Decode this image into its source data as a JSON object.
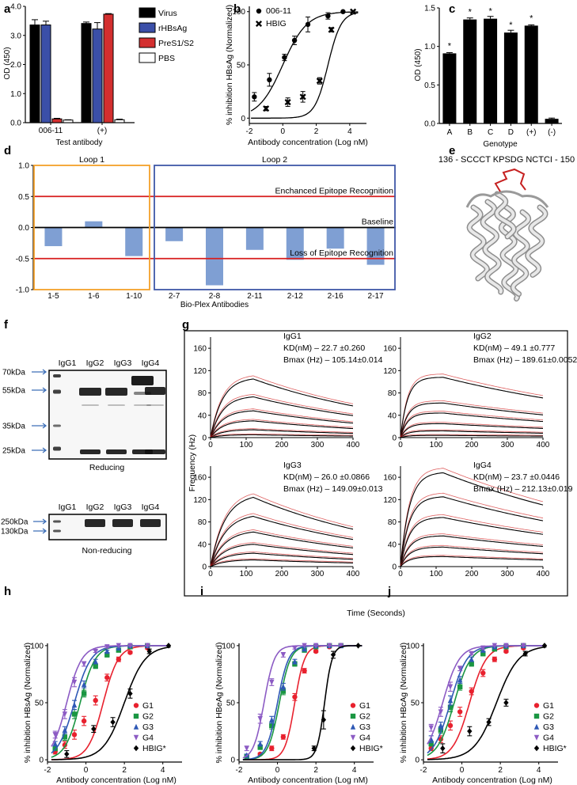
{
  "panel_letters": {
    "a": "a",
    "b": "b",
    "c": "c",
    "d": "d",
    "e": "e",
    "f": "f",
    "g": "g",
    "h": "h",
    "i": "i",
    "j": "j"
  },
  "colors": {
    "virus": "#000000",
    "rhbsag": "#3b4fa8",
    "pres": "#d32f2f",
    "pbs": "#ffffff",
    "d_bar": "#7f9fd3",
    "loop1_box": "#f4a12a",
    "loop2_box": "#3f58a8",
    "threshold": "#d81e1e",
    "gel_bg": "#f7f7f7",
    "sensor": "#d22020",
    "fit": "#000000",
    "g1": "#e8212e",
    "g2": "#1a9642",
    "g3": "#2e58b5",
    "g4": "#8c5bc4",
    "hbig": "#000000"
  },
  "chart_data": [
    {
      "id": "a",
      "type": "bar",
      "categories": [
        "006-11",
        "(+)"
      ],
      "series": [
        {
          "name": "Virus",
          "values": [
            3.36,
            3.41
          ]
        },
        {
          "name": "rHBsAg",
          "values": [
            3.36,
            3.22
          ]
        },
        {
          "name": "PreS1/S2",
          "values": [
            0.13,
            3.73
          ]
        },
        {
          "name": "PBS",
          "values": [
            0.09,
            0.1
          ]
        }
      ],
      "errors": [
        [
          0.18,
          0.05
        ],
        [
          0.13,
          0.22
        ],
        [
          0.02,
          0.02
        ],
        [
          0.01,
          0.02
        ]
      ],
      "ylabel": "OD (450)",
      "xlabel": "Test antibody",
      "ylim": [
        0,
        4
      ],
      "yticks": [
        "0.0",
        "1.0",
        "2.0",
        "3.0",
        "4.0"
      ]
    },
    {
      "id": "b",
      "type": "scatter",
      "ylabel": "% inhibition HBsAg (Normalized)",
      "xlabel": "Antibody concentration (Log nM)",
      "xlim": [
        -2,
        5
      ],
      "ylim": [
        -5,
        105
      ],
      "xticks": [
        "-2",
        "0",
        "2",
        "4"
      ],
      "yticks": [
        "0",
        "50",
        "100"
      ],
      "series": [
        {
          "name": "006-11",
          "marker": "circle",
          "x": [
            -1.7,
            -0.8,
            0.1,
            0.7,
            1.5,
            2.7,
            3.6
          ],
          "y": [
            20,
            36,
            57,
            73,
            88,
            96,
            100
          ],
          "err": [
            4,
            6,
            3,
            4,
            7,
            3,
            0
          ],
          "ec50": 0,
          "hill": 0.6
        },
        {
          "name": "HBIG",
          "marker": "x",
          "x": [
            -1,
            0.3,
            1.2,
            2.2,
            2.9,
            4.2
          ],
          "y": [
            9,
            15,
            20,
            35,
            83,
            100
          ],
          "err": [
            2,
            4,
            5,
            3,
            2,
            0
          ],
          "ec50": 2.7,
          "hill": 1.1
        }
      ]
    },
    {
      "id": "c",
      "type": "bar",
      "categories": [
        "A",
        "B",
        "C",
        "D",
        "(+)",
        "(-)"
      ],
      "values": [
        0.91,
        1.35,
        1.36,
        1.18,
        1.27,
        0.06
      ],
      "errors": [
        0.01,
        0.02,
        0.03,
        0.03,
        0.01,
        0.01
      ],
      "annotations": [
        "*",
        "*",
        "*",
        "*",
        "*",
        ""
      ],
      "ylabel": "OD (450)",
      "xlabel": "Genotype",
      "ylim": [
        0,
        1.5
      ],
      "yticks": [
        "0.0",
        "0.5",
        "1.0",
        "1.5"
      ]
    },
    {
      "id": "d",
      "type": "bar",
      "categories": [
        "1-5",
        "1-6",
        "1-10",
        "2-7",
        "2-8",
        "2-11",
        "2-12",
        "2-16",
        "2-17"
      ],
      "values": [
        -0.3,
        0.1,
        -0.46,
        -0.22,
        -0.93,
        -0.36,
        -0.52,
        -0.34,
        -0.6
      ],
      "xlabel": "Bio-Plex Antibodies",
      "ylim": [
        -1,
        1
      ],
      "yticks": [
        "1.0",
        "0.5",
        "0.0",
        "-0.5",
        "-1.0"
      ],
      "groups": [
        {
          "label": "Loop 1",
          "from": 0,
          "to": 2
        },
        {
          "label": "Loop 2",
          "from": 3,
          "to": 8
        }
      ],
      "thresholds": [
        {
          "y": 0.5,
          "label": "Enchanced Epitope Recognition"
        },
        {
          "y": 0,
          "label": "Baseline"
        },
        {
          "y": -0.5,
          "label": "Loss of Epitope Recognition"
        }
      ]
    },
    {
      "id": "g",
      "type": "line",
      "xlabel": "Time (Seconds)",
      "ylabel": "Frequency (Hz)",
      "xlim": [
        0,
        400
      ],
      "ylim": [
        0,
        180
      ],
      "xticks": [
        "0",
        "100",
        "200",
        "300",
        "400"
      ],
      "yticks": [
        "0",
        "40",
        "80",
        "120",
        "160"
      ],
      "subplots": [
        {
          "name": "IgG1",
          "kd": "KD(nM) – 22.7 ±0.260",
          "bmax": "Bmax (Hz) – 105.14±0.014",
          "peaks": [
            105,
            73,
            48,
            30,
            14,
            5
          ],
          "decay": 0.0022,
          "kon": 0.03
        },
        {
          "name": "IgG2",
          "kd": "KD(nM) – 49.1 ±0.777",
          "bmax": "Bmax (Hz) – 189.61±0.0052",
          "peaks": [
            108,
            62,
            44,
            25,
            12,
            4
          ],
          "decay": 0.0015,
          "kon": 0.05
        },
        {
          "name": "IgG3",
          "kd": "KD(nM) – 26.0 ±0.0866",
          "bmax": "Bmax (Hz) – 149.09±0.013",
          "peaks": [
            124,
            90,
            62,
            40,
            24,
            12
          ],
          "decay": 0.0022,
          "kon": 0.025
        },
        {
          "name": "IgG4",
          "kd": "KD(nM) – 23.7 ±0.0446",
          "bmax": "Bmax (Hz) – 212.13±0.019",
          "peaks": [
            168,
            125,
            88,
            55,
            35,
            18
          ],
          "decay": 0.0015,
          "kon": 0.04
        }
      ]
    },
    {
      "id": "h",
      "type": "scatter",
      "ylabel": "% inhibition HBsAg (Normalized)",
      "xlabel": "Antibody concentration (Log nM)",
      "xlim": [
        -2,
        5
      ],
      "ylim": [
        -2,
        102
      ],
      "xticks": [
        "-2",
        "0",
        "2",
        "4"
      ],
      "yticks": [
        "0",
        "50",
        "100"
      ],
      "series": [
        {
          "name": "G1",
          "marker": "circle",
          "ec50": 0.9,
          "hill": 1.1,
          "x": [
            -1.6,
            -1.1,
            -0.6,
            -0.1,
            0.5,
            1.1,
            1.7,
            2.3,
            3.2
          ],
          "y": [
            7,
            13,
            22,
            34,
            52,
            72,
            88,
            94,
            98
          ],
          "err": [
            2,
            3,
            4,
            4,
            4,
            3,
            2,
            1,
            1
          ]
        },
        {
          "name": "G2",
          "marker": "square",
          "ec50": -0.3,
          "hill": 1.1,
          "x": [
            -1.6,
            -1.1,
            -0.6,
            -0.1,
            0.5,
            1.1,
            1.7,
            2.3,
            3.2
          ],
          "y": [
            10,
            20,
            40,
            58,
            82,
            92,
            96,
            99,
            100
          ],
          "err": [
            2,
            3,
            4,
            3,
            2,
            2,
            1,
            1,
            0
          ]
        },
        {
          "name": "G3",
          "marker": "triangle",
          "ec50": -0.6,
          "hill": 1.0,
          "x": [
            -1.6,
            -1.1,
            -0.6,
            -0.1,
            0.5,
            1.1,
            1.7,
            2.3,
            3.2
          ],
          "y": [
            14,
            26,
            48,
            66,
            86,
            95,
            98,
            100,
            100
          ],
          "err": [
            2,
            3,
            4,
            3,
            2,
            1,
            1,
            0,
            0
          ]
        },
        {
          "name": "G4",
          "marker": "tri-down",
          "ec50": -1.0,
          "hill": 1.1,
          "x": [
            -1.6,
            -1.1,
            -0.6,
            -0.1,
            0.5,
            1.1,
            1.7,
            2.3,
            3.2
          ],
          "y": [
            22,
            40,
            68,
            84,
            95,
            99,
            100,
            100,
            100
          ],
          "err": [
            3,
            4,
            4,
            2,
            1,
            1,
            0,
            0,
            0
          ]
        },
        {
          "name": "HBIG*",
          "marker": "diamond",
          "ec50": 2.0,
          "hill": 0.8,
          "x": [
            -1.0,
            0.4,
            1.4,
            2.3,
            3.3,
            4.3
          ],
          "y": [
            5,
            27,
            33,
            58,
            95,
            100
          ],
          "err": [
            3,
            3,
            4,
            4,
            2,
            0
          ]
        }
      ]
    },
    {
      "id": "i",
      "type": "scatter",
      "ylabel": "% inhibition HBeAg (Normalized)",
      "xlabel": "Antibody concentration (Log nM)",
      "xlim": [
        -2,
        5
      ],
      "ylim": [
        -2,
        102
      ],
      "xticks": [
        "-2",
        "0",
        "2",
        "4"
      ],
      "yticks": [
        "0",
        "50",
        "100"
      ],
      "series": [
        {
          "name": "G1",
          "marker": "circle",
          "ec50": 0.9,
          "hill": 1.7,
          "x": [
            -1.6,
            -0.9,
            -0.3,
            0.3,
            0.9,
            1.4,
            2.0,
            2.7,
            3.3
          ],
          "y": [
            2,
            5,
            10,
            20,
            55,
            78,
            95,
            99,
            100
          ],
          "err": [
            1,
            1,
            2,
            2,
            3,
            2,
            1,
            0,
            0
          ]
        },
        {
          "name": "G2",
          "marker": "square",
          "ec50": 0.1,
          "hill": 1.5,
          "x": [
            -1.6,
            -0.9,
            -0.3,
            0.3,
            0.9,
            1.4,
            2.0,
            2.7,
            3.3
          ],
          "y": [
            3,
            11,
            30,
            60,
            84,
            96,
            99,
            100,
            100
          ],
          "err": [
            1,
            2,
            3,
            3,
            2,
            1,
            0,
            0,
            0
          ]
        },
        {
          "name": "G3",
          "marker": "triangle",
          "ec50": 0.0,
          "hill": 1.5,
          "x": [
            -1.6,
            -0.9,
            -0.3,
            0.3,
            0.9,
            1.4,
            2.0,
            2.7,
            3.3
          ],
          "y": [
            4,
            14,
            35,
            64,
            86,
            97,
            100,
            100,
            100
          ],
          "err": [
            1,
            2,
            3,
            3,
            2,
            1,
            0,
            0,
            0
          ]
        },
        {
          "name": "G4",
          "marker": "tri-down",
          "ec50": -0.7,
          "hill": 1.6,
          "x": [
            -1.6,
            -0.9,
            -0.3,
            0.3,
            0.9,
            1.4,
            2.0,
            2.7,
            3.3
          ],
          "y": [
            10,
            36,
            68,
            92,
            98,
            100,
            100,
            100,
            100
          ],
          "err": [
            2,
            4,
            3,
            2,
            1,
            0,
            0,
            0,
            0
          ]
        },
        {
          "name": "HBIG*",
          "marker": "diamond",
          "ec50": 2.45,
          "hill": 2.2,
          "x": [
            1.9,
            2.4,
            2.9,
            4.2
          ],
          "y": [
            10,
            35,
            92,
            100
          ],
          "err": [
            2,
            8,
            3,
            0
          ]
        }
      ]
    },
    {
      "id": "j",
      "type": "scatter",
      "ylabel": "% inhibition HBcAg (Normalized)",
      "xlabel": "Antibody concentration (Log nM)",
      "xlim": [
        -2,
        5
      ],
      "ylim": [
        -2,
        102
      ],
      "xticks": [
        "-2",
        "0",
        "2",
        "4"
      ],
      "yticks": [
        "0",
        "50",
        "100"
      ],
      "series": [
        {
          "name": "G1",
          "marker": "circle",
          "ec50": 0.4,
          "hill": 1.0,
          "x": [
            -1.6,
            -1.1,
            -0.6,
            -0.1,
            0.5,
            1.1,
            1.7,
            2.3,
            3.2
          ],
          "y": [
            10,
            18,
            30,
            42,
            60,
            76,
            88,
            95,
            98
          ],
          "err": [
            2,
            3,
            4,
            4,
            3,
            3,
            2,
            1,
            1
          ]
        },
        {
          "name": "G2",
          "marker": "square",
          "ec50": -0.4,
          "hill": 1.0,
          "x": [
            -1.6,
            -1.1,
            -0.6,
            -0.1,
            0.5,
            1.1,
            1.7,
            2.3,
            3.2
          ],
          "y": [
            14,
            26,
            46,
            64,
            84,
            93,
            97,
            99,
            100
          ],
          "err": [
            2,
            3,
            4,
            3,
            2,
            2,
            1,
            1,
            0
          ]
        },
        {
          "name": "G3",
          "marker": "triangle",
          "ec50": -0.6,
          "hill": 1.0,
          "x": [
            -1.6,
            -1.1,
            -0.6,
            -0.1,
            0.5,
            1.1,
            1.7,
            2.3,
            3.2
          ],
          "y": [
            18,
            30,
            52,
            70,
            88,
            96,
            99,
            100,
            100
          ],
          "err": [
            3,
            3,
            4,
            3,
            2,
            1,
            1,
            0,
            0
          ]
        },
        {
          "name": "G4",
          "marker": "tri-down",
          "ec50": -1.0,
          "hill": 1.0,
          "x": [
            -1.6,
            -1.1,
            -0.6,
            -0.1,
            0.5,
            1.1,
            1.7,
            2.3,
            3.2
          ],
          "y": [
            28,
            42,
            64,
            80,
            93,
            98,
            100,
            100,
            100
          ],
          "err": [
            3,
            4,
            4,
            2,
            1,
            1,
            0,
            0,
            0
          ]
        },
        {
          "name": "HBIG*",
          "marker": "diamond",
          "ec50": 1.8,
          "hill": 0.75,
          "x": [
            -1.0,
            0.4,
            1.4,
            2.3,
            3.3,
            4.3
          ],
          "y": [
            10,
            25,
            33,
            50,
            93,
            100
          ],
          "err": [
            4,
            4,
            3,
            3,
            2,
            0
          ]
        }
      ]
    }
  ],
  "panel_e": {
    "title": "136 - SCCCT KPSDG NCTCI - 150"
  },
  "panel_f": {
    "lanes": [
      "IgG1",
      "IgG2",
      "IgG3",
      "IgG4"
    ],
    "reducing_label": "Reducing",
    "nonreducing_label": "Non-reducing",
    "markers_reducing": [
      "70kDa",
      "55kDa",
      "35kDa",
      "25kDa"
    ],
    "markers_nonreducing": [
      "250kDa",
      "130kDa"
    ]
  }
}
